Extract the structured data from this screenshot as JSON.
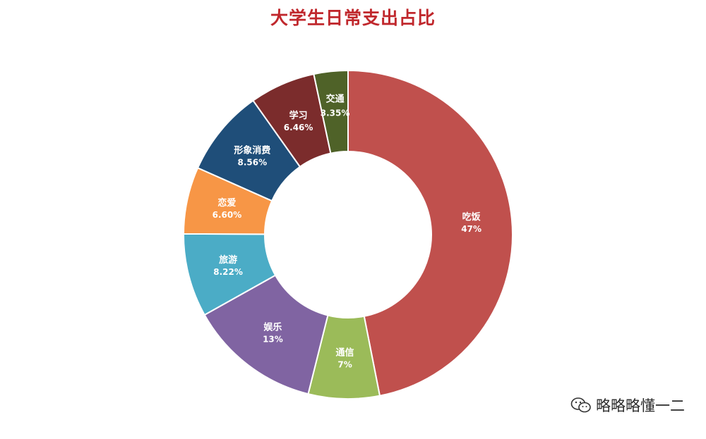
{
  "chart_data": {
    "type": "pie",
    "title": "大学生日常支出占比",
    "slices": [
      {
        "label": "吃饭",
        "value": 47,
        "value_text": "47%",
        "color": "#c0504d"
      },
      {
        "label": "通信",
        "value": 7,
        "value_text": "7%",
        "color": "#9bbb59"
      },
      {
        "label": "娱乐",
        "value": 13,
        "value_text": "13%",
        "color": "#8064a2"
      },
      {
        "label": "旅游",
        "value": 8.22,
        "value_text": "8.22%",
        "color": "#4bacc6"
      },
      {
        "label": "恋爱",
        "value": 6.6,
        "value_text": "6.60%",
        "color": "#f79646"
      },
      {
        "label": "形象消费",
        "value": 8.56,
        "value_text": "8.56%",
        "color": "#1f4e79"
      },
      {
        "label": "学习",
        "value": 6.46,
        "value_text": "6.46%",
        "color": "#7b2c2c"
      },
      {
        "label": "交通",
        "value": 3.35,
        "value_text": "3.35%",
        "color": "#4f6228"
      }
    ],
    "legend": "none"
  },
  "watermark": {
    "text": "略略略懂一二",
    "icon": "wechat-icon"
  }
}
